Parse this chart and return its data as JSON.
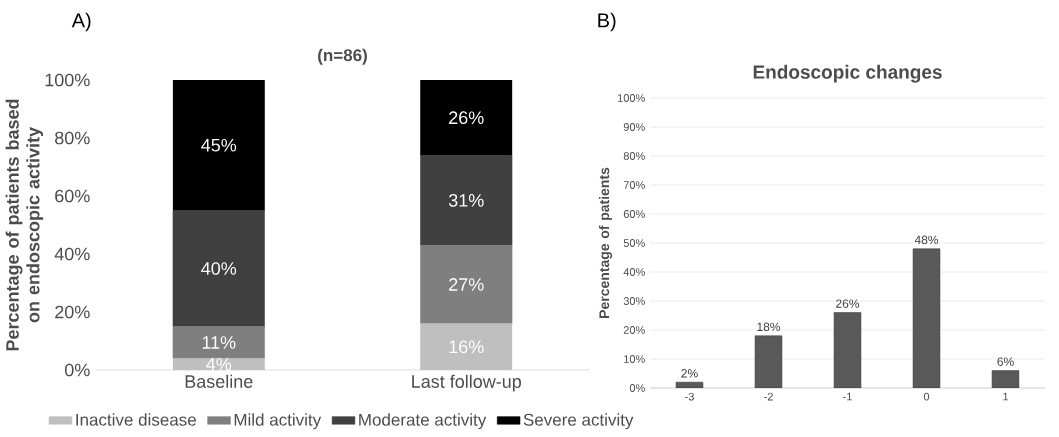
{
  "chart_data": [
    {
      "type": "bar",
      "title": "(n=86)",
      "ylabel": "Percentage of patients based on endoscopic activity",
      "annotations": [
        "A)"
      ],
      "stacked": true,
      "legend": "bottom",
      "categories": [
        "Baseline",
        "Last follow-up"
      ],
      "series": [
        {
          "name": "Inactive disease",
          "color": "#bfbfbf",
          "values": [
            4,
            16
          ],
          "value_labels": [
            "4%",
            "16%"
          ]
        },
        {
          "name": "Mild activity",
          "color": "#7f7f7f",
          "values": [
            11,
            27
          ],
          "value_labels": [
            "11%",
            "27%"
          ]
        },
        {
          "name": "Moderate activity",
          "color": "#404040",
          "values": [
            40,
            31
          ],
          "value_labels": [
            "40%",
            "31%"
          ]
        },
        {
          "name": "Severe activity",
          "color": "#000000",
          "values": [
            45,
            26
          ],
          "value_labels": [
            "45%",
            "26%"
          ]
        }
      ],
      "ylim": [
        0,
        100
      ],
      "yticks": [
        {
          "value": 0,
          "label": "0%"
        },
        {
          "value": 20,
          "label": "20%"
        },
        {
          "value": 40,
          "label": "40%"
        },
        {
          "value": 60,
          "label": "60%"
        },
        {
          "value": 80,
          "label": "80%"
        },
        {
          "value": 100,
          "label": "100%"
        }
      ]
    },
    {
      "type": "bar",
      "title": "Endoscopic changes",
      "ylabel": "Percentage of patients",
      "annotations": [
        "B)"
      ],
      "grid": "y",
      "categories": [
        "-3",
        "-2",
        "-1",
        "0",
        "1"
      ],
      "series": [
        {
          "color": "#595959",
          "values": [
            2,
            18,
            26,
            48,
            6
          ],
          "value_labels": [
            "2%",
            "18%",
            "26%",
            "48%",
            "6%"
          ]
        }
      ],
      "ylim": [
        0,
        100
      ],
      "yticks": [
        {
          "value": 0,
          "label": "0%"
        },
        {
          "value": 10,
          "label": "10%"
        },
        {
          "value": 20,
          "label": "20%"
        },
        {
          "value": 30,
          "label": "30%"
        },
        {
          "value": 40,
          "label": "40%"
        },
        {
          "value": 50,
          "label": "50%"
        },
        {
          "value": 60,
          "label": "60%"
        },
        {
          "value": 70,
          "label": "70%"
        },
        {
          "value": 80,
          "label": "80%"
        },
        {
          "value": 90,
          "label": "90%"
        },
        {
          "value": 100,
          "label": "100%"
        }
      ]
    }
  ]
}
